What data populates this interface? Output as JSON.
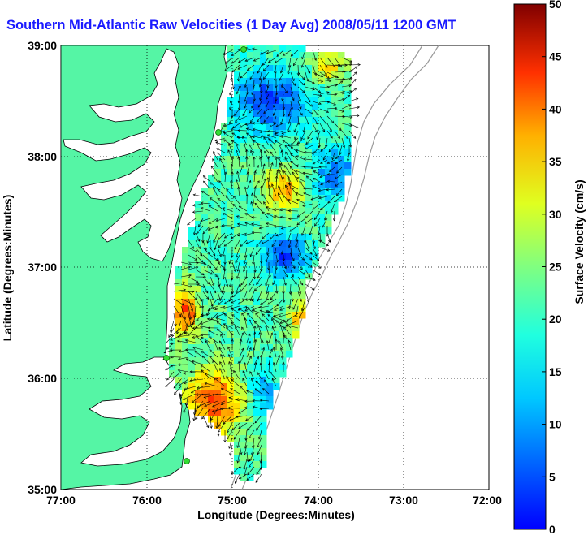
{
  "title": "Southern Mid-Atlantic Raw Velocities (1 Day Avg) 2008/05/11 1200 GMT",
  "map": {
    "xlabel": "Longitude (Degrees:Minutes)",
    "ylabel": "Latitude (Degrees:Minutes)",
    "xticks": [
      "77:00",
      "76:00",
      "75:00",
      "74:00",
      "73:00",
      "72:00"
    ],
    "yticks": [
      "39:00",
      "38:00",
      "37:00",
      "36:00",
      "35:00"
    ],
    "xlim_deg_west": [
      77,
      72
    ],
    "ylim_deg_north": [
      35,
      39
    ],
    "grid": "dotted",
    "land_color": "#55f5a5",
    "coastline_color": "#000000",
    "bathymetry_contour_color": "#999999",
    "station_marker_color": "#33dd33"
  },
  "colorbar": {
    "label": "Surface Velocity (cm/s)",
    "ticks": [
      "0",
      "5",
      "10",
      "15",
      "20",
      "25",
      "30",
      "35",
      "40",
      "45",
      "50"
    ],
    "min": 0,
    "max": 50,
    "colormap": "jet"
  }
}
